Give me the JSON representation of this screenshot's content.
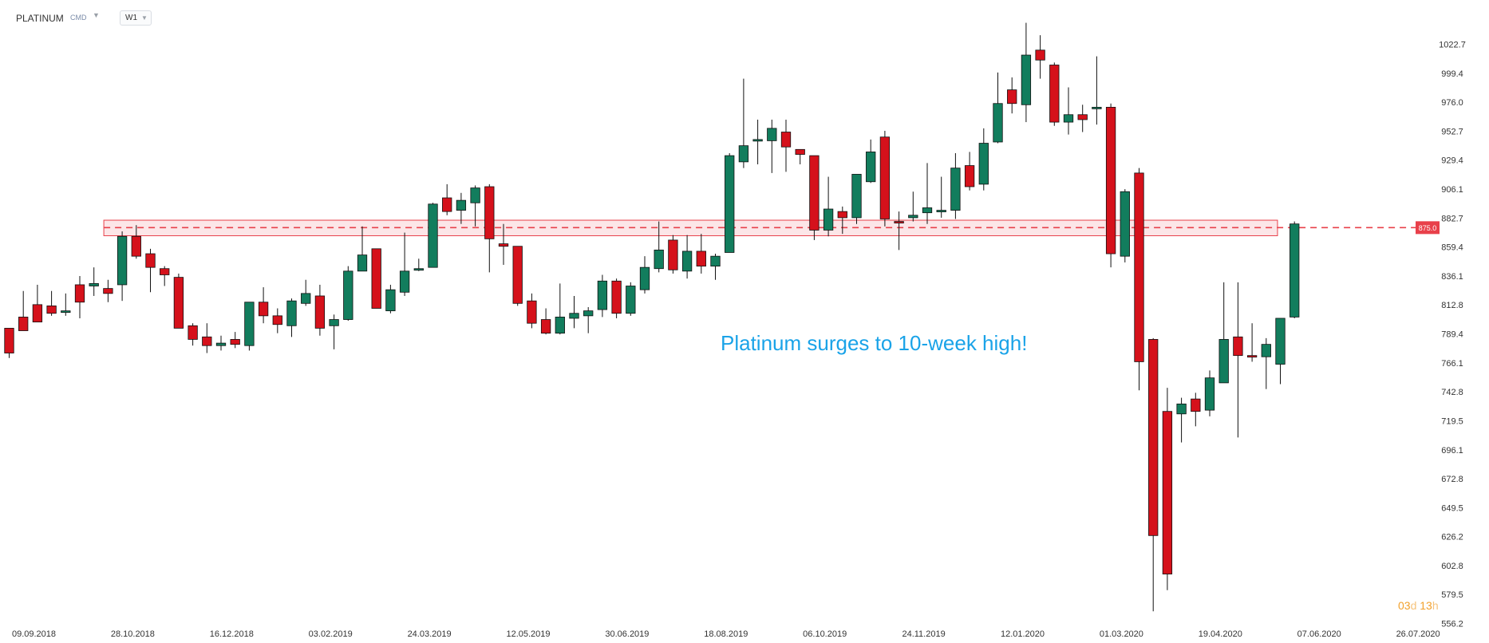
{
  "header": {
    "symbol": "PLATINUM",
    "category": "CMD",
    "timeframe": "W1"
  },
  "annotation": "Platinum surges to 10-week high!",
  "countdown": {
    "days": "03",
    "d": "d",
    "hours": "13",
    "h": "h"
  },
  "colors": {
    "up": "#127d5d",
    "down": "#d5111b",
    "level": "#e8404a",
    "annotation": "#1aa3e8",
    "countdown": "#f2a02b"
  },
  "chart_data": {
    "type": "candlestick",
    "y_range": [
      556.2,
      1034
    ],
    "y_ticks": [
      1022.7,
      999.4,
      976.0,
      952.7,
      929.4,
      906.1,
      882.7,
      859.4,
      836.1,
      812.8,
      789.4,
      766.1,
      742.8,
      719.5,
      696.1,
      672.8,
      649.5,
      626.2,
      602.8,
      579.5,
      556.2
    ],
    "x_labels": [
      {
        "text": "09.09.2018",
        "index": 0
      },
      {
        "text": "28.10.2018",
        "index": 7
      },
      {
        "text": "16.12.2018",
        "index": 14
      },
      {
        "text": "03.02.2019",
        "index": 21
      },
      {
        "text": "24.03.2019",
        "index": 28
      },
      {
        "text": "12.05.2019",
        "index": 35
      },
      {
        "text": "30.06.2019",
        "index": 42
      },
      {
        "text": "18.08.2019",
        "index": 49
      },
      {
        "text": "06.10.2019",
        "index": 56
      },
      {
        "text": "24.11.2019",
        "index": 63
      },
      {
        "text": "12.01.2020",
        "index": 70
      },
      {
        "text": "01.03.2020",
        "index": 77
      },
      {
        "text": "19.04.2020",
        "index": 84
      },
      {
        "text": "07.06.2020",
        "index": 91
      },
      {
        "text": "26.07.2020",
        "index": 98
      }
    ],
    "current_price": "875.0",
    "level": {
      "value": 875.0,
      "zone_low": 868.5,
      "zone_high": 881.0,
      "from_index": 6.7,
      "to_index": 89.8
    },
    "candles": [
      [
        794,
        774,
        793,
        770
      ],
      [
        803,
        792,
        824,
        799
      ],
      [
        813,
        799,
        829,
        810
      ],
      [
        812,
        806,
        824,
        804
      ],
      [
        807,
        808,
        822,
        804
      ],
      [
        829,
        815,
        836,
        802
      ],
      [
        828,
        830,
        843,
        820
      ],
      [
        826,
        822,
        833,
        815
      ],
      [
        829,
        868,
        872,
        816
      ],
      [
        868,
        852,
        877,
        850
      ],
      [
        854,
        843,
        858,
        823
      ],
      [
        842,
        837,
        844,
        828
      ],
      [
        835,
        794,
        838,
        794
      ],
      [
        796,
        785,
        798,
        780
      ],
      [
        787,
        780,
        798,
        774
      ],
      [
        780,
        782,
        788,
        776
      ],
      [
        785,
        781,
        791,
        778
      ],
      [
        780,
        815,
        815,
        776
      ],
      [
        815,
        804,
        827,
        798
      ],
      [
        804,
        797,
        810,
        790
      ],
      [
        796,
        816,
        818,
        787
      ],
      [
        814,
        822,
        833,
        812
      ],
      [
        820,
        794,
        829,
        788
      ],
      [
        796,
        801,
        805,
        777
      ],
      [
        801,
        840,
        844,
        800
      ],
      [
        840,
        853,
        876,
        840
      ],
      [
        858,
        810,
        858,
        810
      ],
      [
        808,
        825,
        829,
        806
      ],
      [
        823,
        840,
        871,
        820
      ],
      [
        842,
        842,
        850,
        840
      ],
      [
        843,
        894,
        895,
        843
      ],
      [
        899,
        888,
        910,
        885
      ],
      [
        889,
        897,
        903,
        878
      ],
      [
        895,
        907,
        909,
        876
      ],
      [
        908,
        866,
        910,
        839
      ],
      [
        862,
        860,
        878,
        845
      ],
      [
        860,
        814,
        860,
        812
      ],
      [
        816,
        798,
        822,
        794
      ],
      [
        801,
        790,
        810,
        789
      ],
      [
        790,
        803,
        830,
        789
      ],
      [
        802,
        806,
        820,
        794
      ],
      [
        804,
        808,
        811,
        790
      ],
      [
        809,
        832,
        837,
        803
      ],
      [
        832,
        806,
        834,
        802
      ],
      [
        806,
        828,
        831,
        804
      ],
      [
        825,
        843,
        852,
        822
      ],
      [
        842,
        857,
        880,
        839
      ],
      [
        865,
        841,
        869,
        838
      ],
      [
        840,
        856,
        869,
        834
      ],
      [
        856,
        844,
        870,
        838
      ],
      [
        844,
        852,
        854,
        833
      ],
      [
        855,
        933,
        935,
        855
      ],
      [
        928,
        941,
        995,
        923
      ],
      [
        946,
        946,
        962,
        926
      ],
      [
        945,
        955,
        962,
        919
      ],
      [
        952,
        940,
        962,
        920
      ],
      [
        938,
        934,
        938,
        926
      ],
      [
        933,
        873,
        933,
        865
      ],
      [
        873,
        890,
        916,
        868
      ],
      [
        888,
        883,
        892,
        870
      ],
      [
        883,
        918,
        918,
        878
      ],
      [
        912,
        936,
        946,
        911
      ],
      [
        948,
        882,
        953,
        876
      ],
      [
        880,
        879,
        888,
        857
      ],
      [
        883,
        885,
        904,
        880
      ],
      [
        887,
        891,
        927,
        878
      ],
      [
        889,
        889,
        916,
        883
      ],
      [
        889,
        923,
        935,
        882
      ],
      [
        925,
        908,
        936,
        905
      ],
      [
        910,
        943,
        955,
        905
      ],
      [
        944,
        975,
        1000,
        943
      ],
      [
        986,
        975,
        996,
        967
      ],
      [
        974,
        1014,
        1040,
        960
      ],
      [
        1018,
        1010,
        1030,
        995
      ],
      [
        1006,
        960,
        1008,
        957
      ],
      [
        960,
        966,
        988,
        950
      ],
      [
        966,
        962,
        974,
        952
      ],
      [
        972,
        972,
        1013,
        958
      ],
      [
        972,
        854,
        975,
        843
      ],
      [
        852,
        904,
        906,
        847
      ],
      [
        919,
        767,
        923,
        744
      ],
      [
        785,
        627,
        786,
        566
      ],
      [
        727,
        596,
        746,
        583
      ],
      [
        725,
        733,
        738,
        702
      ],
      [
        737,
        727,
        742,
        715
      ],
      [
        728,
        754,
        760,
        723
      ],
      [
        750,
        785,
        831,
        750
      ],
      [
        787,
        772,
        831,
        706
      ],
      [
        772,
        771,
        798,
        767
      ],
      [
        771,
        781,
        786,
        745
      ],
      [
        765,
        802,
        802,
        749
      ],
      [
        803,
        878,
        880,
        802
      ]
    ]
  }
}
